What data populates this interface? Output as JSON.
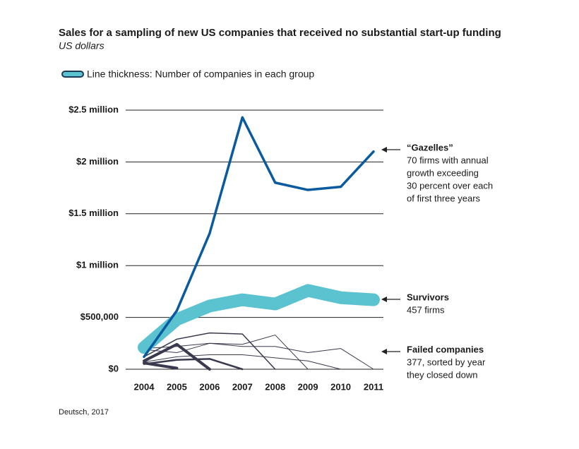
{
  "chart_data": {
    "type": "line",
    "title": "Sales for a sampling of new US companies that received no substantial start-up funding",
    "subtitle": "US dollars",
    "legend_text": "Line thickness: Number of companies in each group",
    "source": "Deutsch, 2017",
    "categories": [
      "2004",
      "2005",
      "2006",
      "2007",
      "2008",
      "2009",
      "2010",
      "2011"
    ],
    "ylim": [
      0,
      2500000
    ],
    "yticks": [
      {
        "value": 0,
        "label": "$0"
      },
      {
        "value": 500000,
        "label": "$500,000"
      },
      {
        "value": 1000000,
        "label": "$1 million"
      },
      {
        "value": 1500000,
        "label": "$1.5 million"
      },
      {
        "value": 2000000,
        "label": "$2 million"
      },
      {
        "value": 2500000,
        "label": "$2.5 million"
      }
    ],
    "grid": true,
    "series": [
      {
        "color": "#3a3a4f",
        "line_width": 1,
        "values": [
          200000,
          220000,
          250000,
          240000,
          330000,
          0,
          null,
          null
        ]
      },
      {
        "color": "#3a3a4f",
        "line_width": 1,
        "values": [
          190000,
          160000,
          250000,
          220000,
          220000,
          160000,
          200000,
          0
        ]
      },
      {
        "color": "#3a3a4f",
        "line_width": 1,
        "values": [
          70000,
          120000,
          140000,
          140000,
          110000,
          80000,
          0,
          null
        ]
      },
      {
        "color": "#3a3a4f",
        "line_width": 1.5,
        "values": [
          120000,
          290000,
          350000,
          340000,
          0,
          null,
          null,
          null
        ]
      },
      {
        "color": "#3a3a4f",
        "line_width": 2.5,
        "values": [
          50000,
          90000,
          100000,
          0,
          null,
          null,
          null,
          null
        ]
      },
      {
        "color": "#3a3a4f",
        "line_width": 4,
        "values": [
          80000,
          240000,
          0,
          null,
          null,
          null,
          null,
          null
        ]
      },
      {
        "color": "#3a3a4f",
        "line_width": 4,
        "values": [
          60000,
          10000,
          null,
          null,
          null,
          null,
          null,
          null
        ]
      },
      {
        "name": "Survivors",
        "color": "#5bc3d0",
        "line_width": 18,
        "values": [
          210000,
          480000,
          610000,
          670000,
          630000,
          760000,
          690000,
          670000
        ]
      },
      {
        "name": "“Gazelles”",
        "color": "#0a5aa0",
        "line_width": 3.5,
        "values": [
          120000,
          565000,
          1310000,
          2430000,
          1800000,
          1730000,
          1760000,
          2100000
        ]
      }
    ],
    "annotations": [
      {
        "title": "“Gazelles”",
        "lines": [
          "70 firms with annual",
          "growth exceeding",
          "30 percent over each",
          "of first three years"
        ]
      },
      {
        "title": "Survivors",
        "lines": [
          "457 firms"
        ]
      },
      {
        "title": "Failed companies",
        "lines": [
          "377, sorted by year",
          "they closed down"
        ]
      }
    ]
  }
}
